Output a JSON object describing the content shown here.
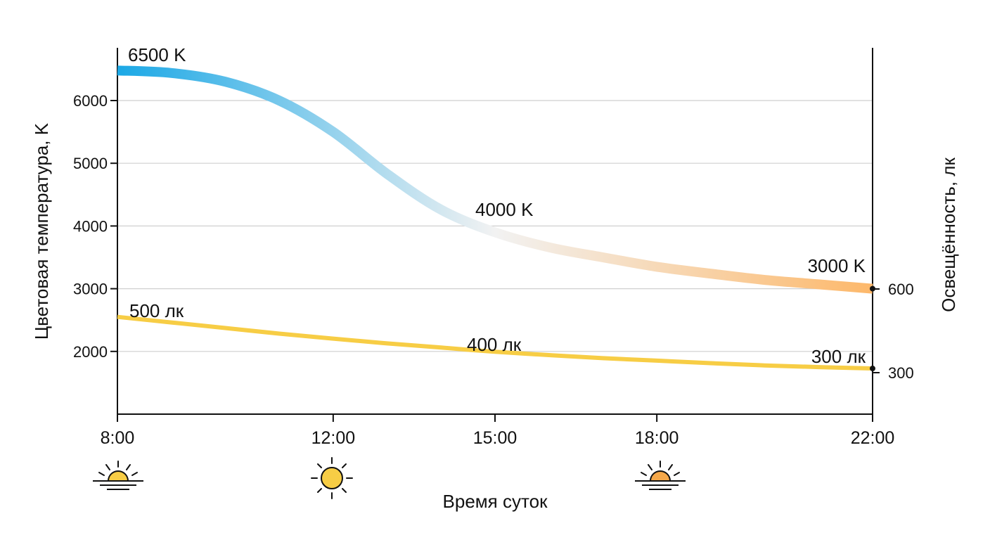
{
  "chart_data": {
    "type": "line",
    "xlabel": "Время суток",
    "ylabel_left": "Цветовая температура, K",
    "ylabel_right": "Освещённость, лк",
    "x_ticks": [
      "8:00",
      "12:00",
      "15:00",
      "18:00",
      "22:00"
    ],
    "x_hours": [
      8,
      12,
      15,
      18,
      22
    ],
    "xlim": [
      8,
      22
    ],
    "y_left_ticks": [
      2000,
      3000,
      4000,
      5000,
      6000
    ],
    "y_left_lim": [
      1000,
      6900
    ],
    "y_right_ticks": [
      300,
      600
    ],
    "grid": "horizontal",
    "series": [
      {
        "name": "Цветовая температура",
        "axis": "left",
        "color_start": "#1ba8e6",
        "color_mid": "#f2f2f2",
        "color_end": "#fdb86a",
        "points": [
          {
            "x": 8,
            "y": 6480
          },
          {
            "x": 9,
            "y": 6440
          },
          {
            "x": 10,
            "y": 6300
          },
          {
            "x": 11,
            "y": 6000
          },
          {
            "x": 12,
            "y": 5500
          },
          {
            "x": 13,
            "y": 4830
          },
          {
            "x": 14,
            "y": 4260
          },
          {
            "x": 15,
            "y": 3900
          },
          {
            "x": 16,
            "y": 3660
          },
          {
            "x": 17,
            "y": 3500
          },
          {
            "x": 18,
            "y": 3350
          },
          {
            "x": 19,
            "y": 3240
          },
          {
            "x": 20,
            "y": 3140
          },
          {
            "x": 21,
            "y": 3070
          },
          {
            "x": 22,
            "y": 3000
          }
        ]
      },
      {
        "name": "Освещённость",
        "axis": "right",
        "color": "#f7cd45",
        "points": [
          {
            "x": 8,
            "y": 500
          },
          {
            "x": 9,
            "y": 480
          },
          {
            "x": 10,
            "y": 460
          },
          {
            "x": 11,
            "y": 440
          },
          {
            "x": 12,
            "y": 422
          },
          {
            "x": 13,
            "y": 405
          },
          {
            "x": 14,
            "y": 390
          },
          {
            "x": 15,
            "y": 375
          },
          {
            "x": 16,
            "y": 363
          },
          {
            "x": 17,
            "y": 352
          },
          {
            "x": 18,
            "y": 343
          },
          {
            "x": 19,
            "y": 334
          },
          {
            "x": 20,
            "y": 326
          },
          {
            "x": 21,
            "y": 320
          },
          {
            "x": 22,
            "y": 315
          }
        ]
      }
    ],
    "annotations": [
      {
        "text": "6500 K",
        "x": 8,
        "series": "temperature"
      },
      {
        "text": "4000 K",
        "x": 15,
        "series": "temperature"
      },
      {
        "text": "3000 K",
        "x": 22,
        "series": "temperature"
      },
      {
        "text": "500 лк",
        "x": 8,
        "series": "illuminance"
      },
      {
        "text": "400 лк",
        "x": 15,
        "series": "illuminance"
      },
      {
        "text": "300 лк",
        "x": 22,
        "series": "illuminance"
      }
    ],
    "icons": [
      {
        "name": "sunrise-icon",
        "x": 8,
        "color": "#f7cd45"
      },
      {
        "name": "sun-icon",
        "x": 12,
        "color": "#f7cd45"
      },
      {
        "name": "sunset-icon",
        "x": 18,
        "color": "#f5a84a"
      }
    ]
  }
}
